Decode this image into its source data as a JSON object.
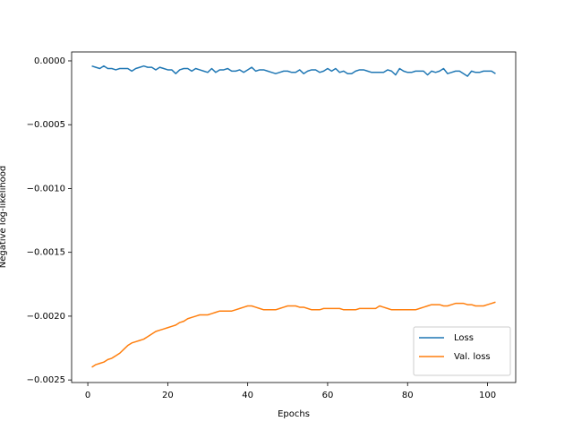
{
  "chart_data": {
    "type": "line",
    "xlabel": "Epochs",
    "ylabel": "Negative log-likelihood",
    "x": [
      1,
      2,
      3,
      4,
      5,
      6,
      7,
      8,
      9,
      10,
      11,
      12,
      13,
      14,
      15,
      16,
      17,
      18,
      19,
      20,
      21,
      22,
      23,
      24,
      25,
      26,
      27,
      28,
      29,
      30,
      31,
      32,
      33,
      34,
      35,
      36,
      37,
      38,
      39,
      40,
      41,
      42,
      43,
      44,
      45,
      46,
      47,
      48,
      49,
      50,
      51,
      52,
      53,
      54,
      55,
      56,
      57,
      58,
      59,
      60,
      61,
      62,
      63,
      64,
      65,
      66,
      67,
      68,
      69,
      70,
      71,
      72,
      73,
      74,
      75,
      76,
      77,
      78,
      79,
      80,
      81,
      82,
      83,
      84,
      85,
      86,
      87,
      88,
      89,
      90,
      91,
      92,
      93,
      94,
      95,
      96,
      97,
      98,
      99,
      100,
      101,
      102
    ],
    "series": [
      {
        "name": "Loss",
        "color": "#1f77b4",
        "values": [
          -4e-05,
          -5e-05,
          -6e-05,
          -4e-05,
          -6e-05,
          -6e-05,
          -7e-05,
          -6e-05,
          -6e-05,
          -6e-05,
          -8e-05,
          -6e-05,
          -5e-05,
          -4e-05,
          -5e-05,
          -5e-05,
          -7e-05,
          -5e-05,
          -6e-05,
          -7e-05,
          -7e-05,
          -0.0001,
          -7e-05,
          -6e-05,
          -6e-05,
          -8e-05,
          -6e-05,
          -7e-05,
          -8e-05,
          -9e-05,
          -6e-05,
          -9e-05,
          -7e-05,
          -7e-05,
          -6e-05,
          -8e-05,
          -8e-05,
          -7e-05,
          -9e-05,
          -7e-05,
          -5e-05,
          -8e-05,
          -7e-05,
          -7e-05,
          -8e-05,
          -9e-05,
          -0.0001,
          -9e-05,
          -8e-05,
          -8e-05,
          -9e-05,
          -9e-05,
          -7e-05,
          -0.0001,
          -8e-05,
          -7e-05,
          -7e-05,
          -9e-05,
          -8e-05,
          -6e-05,
          -8e-05,
          -6e-05,
          -9e-05,
          -8e-05,
          -0.0001,
          -0.0001,
          -8e-05,
          -7e-05,
          -7e-05,
          -8e-05,
          -9e-05,
          -9e-05,
          -9e-05,
          -9e-05,
          -7e-05,
          -8e-05,
          -0.00011,
          -6e-05,
          -8e-05,
          -9e-05,
          -9e-05,
          -8e-05,
          -8e-05,
          -8e-05,
          -0.00011,
          -8e-05,
          -9e-05,
          -8e-05,
          -6e-05,
          -0.0001,
          -9e-05,
          -8e-05,
          -8e-05,
          -0.0001,
          -0.00012,
          -8e-05,
          -9e-05,
          -9e-05,
          -8e-05,
          -8e-05,
          -8e-05,
          -0.0001
        ]
      },
      {
        "name": "Val. loss",
        "color": "#ff7f0e",
        "values": [
          -0.0024,
          -0.00238,
          -0.00237,
          -0.00236,
          -0.00234,
          -0.00233,
          -0.00231,
          -0.00229,
          -0.00226,
          -0.00223,
          -0.00221,
          -0.0022,
          -0.00219,
          -0.00218,
          -0.00216,
          -0.00214,
          -0.00212,
          -0.00211,
          -0.0021,
          -0.00209,
          -0.00208,
          -0.00207,
          -0.00205,
          -0.00204,
          -0.00202,
          -0.00201,
          -0.002,
          -0.00199,
          -0.00199,
          -0.00199,
          -0.00198,
          -0.00197,
          -0.00196,
          -0.00196,
          -0.00196,
          -0.00196,
          -0.00195,
          -0.00194,
          -0.00193,
          -0.00192,
          -0.00192,
          -0.00193,
          -0.00194,
          -0.00195,
          -0.00195,
          -0.00195,
          -0.00195,
          -0.00194,
          -0.00193,
          -0.00192,
          -0.00192,
          -0.00192,
          -0.00193,
          -0.00193,
          -0.00194,
          -0.00195,
          -0.00195,
          -0.00195,
          -0.00194,
          -0.00194,
          -0.00194,
          -0.00194,
          -0.00194,
          -0.00195,
          -0.00195,
          -0.00195,
          -0.00195,
          -0.00194,
          -0.00194,
          -0.00194,
          -0.00194,
          -0.00194,
          -0.00192,
          -0.00193,
          -0.00194,
          -0.00195,
          -0.00195,
          -0.00195,
          -0.00195,
          -0.00195,
          -0.00195,
          -0.00195,
          -0.00194,
          -0.00193,
          -0.00192,
          -0.00191,
          -0.00191,
          -0.00191,
          -0.00192,
          -0.00192,
          -0.00191,
          -0.0019,
          -0.0019,
          -0.0019,
          -0.00191,
          -0.00191,
          -0.00192,
          -0.00192,
          -0.00192,
          -0.00191,
          -0.0019,
          -0.00189
        ]
      }
    ],
    "xlim": [
      -4.05,
      107.05
    ],
    "ylim": [
      -0.00252,
      7e-05
    ],
    "xticks": [
      0,
      20,
      40,
      60,
      80,
      100
    ],
    "yticks": [
      {
        "value": 0,
        "label": "0.0000"
      },
      {
        "value": -0.0005,
        "label": "−0.0005"
      },
      {
        "value": -0.001,
        "label": "−0.0010"
      },
      {
        "value": -0.0015,
        "label": "−0.0015"
      },
      {
        "value": -0.002,
        "label": "−0.0020"
      },
      {
        "value": -0.0025,
        "label": "−0.0025"
      }
    ],
    "legend": "lower right",
    "grid": false
  }
}
